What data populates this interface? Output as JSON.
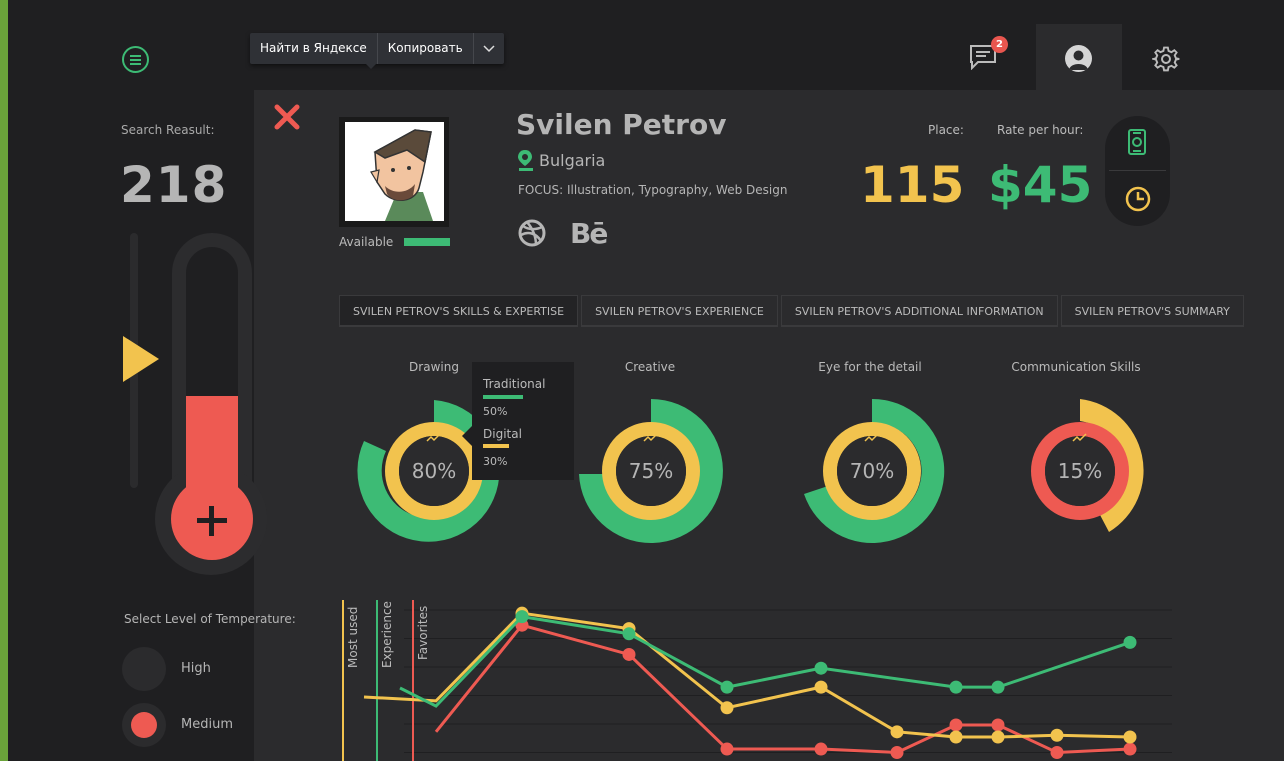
{
  "topbar": {
    "translate_popup": {
      "search_label": "Найти в Яндексе",
      "copy_label": "Копировать"
    },
    "messages_count": "2"
  },
  "sidebar": {
    "search_result_label": "Search Reasult:",
    "search_result_count": "218",
    "temperature_fill": 0.45,
    "temperature_level_label": "Select Level of Temperature:",
    "levels": [
      {
        "label": "High",
        "selected": false
      },
      {
        "label": "Medium",
        "selected": true
      }
    ]
  },
  "profile": {
    "name": "Svilen Petrov",
    "country": "Bulgaria",
    "focus": "FOCUS: Illustration, Typography, Web Design",
    "available_label": "Available",
    "social_icons": [
      "dribbble-icon",
      "behance-icon"
    ],
    "behance_text": "Bē",
    "place_label": "Place:",
    "place_value": "115",
    "rate_label": "Rate per hour:",
    "rate_value": "$45"
  },
  "tabs": [
    {
      "label": "SVILEN PETROV'S SKILLS & EXPERTISE",
      "active": true
    },
    {
      "label": "SVILEN PETROV'S EXPERIENCE",
      "active": false
    },
    {
      "label": "SVILEN PETROV'S ADDITIONAL INFORMATION",
      "active": false
    },
    {
      "label": "SVILEN PETROV'S SUMMARY",
      "active": false
    }
  ],
  "skills": [
    {
      "title": "Drawing",
      "percent_label": "80%"
    },
    {
      "title": "Creative",
      "percent_label": "75%"
    },
    {
      "title": "Eye for the detail",
      "percent_label": "70%"
    },
    {
      "title": "Communication Skills",
      "percent_label": "15%"
    }
  ],
  "tooltip": {
    "items": [
      {
        "label": "Traditional",
        "value": "50%"
      },
      {
        "label": "Digital",
        "value": "30%"
      }
    ]
  },
  "colors": {
    "green": "#3dbb75",
    "yellow": "#f2c34e",
    "red": "#ee5a52",
    "bg": "#2b2b2d",
    "panel": "#1f1f21"
  },
  "chart_data": {
    "type": "line",
    "legend": [
      "Most used",
      "Experience",
      "Favorites"
    ],
    "grid": true,
    "series": [
      {
        "name": "Experience",
        "color": "#3dbb75",
        "values": [
          43,
          95,
          85,
          54,
          65,
          54,
          54,
          80
        ]
      },
      {
        "name": "Most used",
        "color": "#f2c34e",
        "values": [
          46,
          97,
          88,
          42,
          54,
          28,
          25,
          25,
          26,
          25
        ]
      },
      {
        "name": "Favorites",
        "color": "#ee5a52",
        "values": [
          28,
          90,
          73,
          18,
          18,
          16,
          32,
          32,
          16,
          18
        ]
      }
    ]
  }
}
